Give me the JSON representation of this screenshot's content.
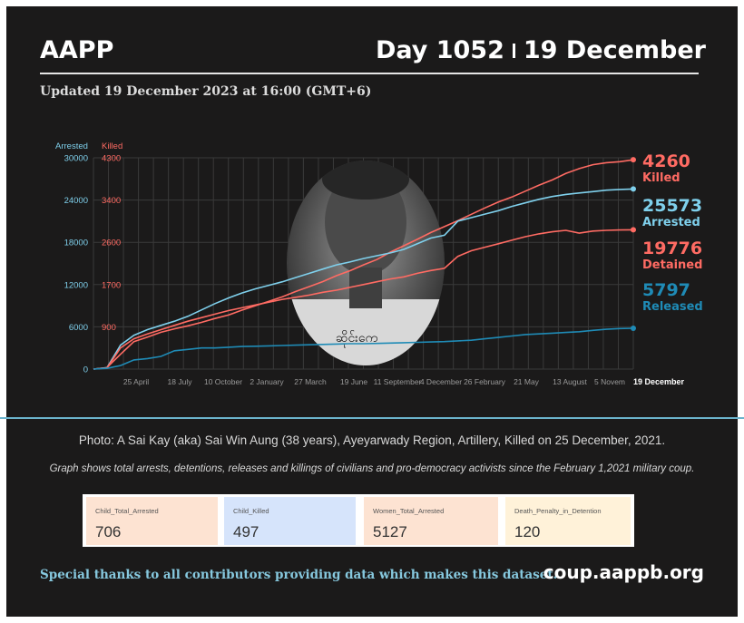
{
  "header": {
    "org": "AAPP",
    "day_label": "Day 1052",
    "date_label": "19 December",
    "updated": "Updated 19 December 2023 at 16:00 (GMT+6)"
  },
  "photo_caption": "Photo: A Sai Kay (aka) Sai Win Aung (38 years), Ayeyarwady Region, Artillery, Killed on 25 December, 2021.",
  "photo_overlay_text": "ဆိုင်းကေ",
  "graph_note": "Graph shows total arrests, detentions, releases and killings of civilians and pro-democracy activists since the February 1,2021 military coup.",
  "stats": [
    {
      "label": "Child_Total_Arrested",
      "value": "706",
      "color": "#fde3d2"
    },
    {
      "label": "Child_Killed",
      "value": "497",
      "color": "#d6e4fb"
    },
    {
      "label": "Women_Total_Arrested",
      "value": "5127",
      "color": "#fde3d2"
    },
    {
      "label": "Death_Penalty_in_Detention",
      "value": "120",
      "color": "#fff2d9"
    }
  ],
  "footer": {
    "thanks": "Special thanks to all contributors providing data which makes this dataset.",
    "site": "coup.aappb.org"
  },
  "chart_data": {
    "type": "line",
    "x_labels": [
      "25 April",
      "18 July",
      "10 October",
      "2 January",
      "27 March",
      "19 June",
      "11 September",
      "4 December",
      "26 February",
      "21 May",
      "13 August",
      "5 Novem",
      "19 December"
    ],
    "left_axis": {
      "title": "Arrested",
      "ticks": [
        "30000",
        "24000",
        "18000",
        "12000",
        "6000",
        "0"
      ],
      "range": [
        0,
        30000
      ],
      "color": "#7fd0ec"
    },
    "right_axis": {
      "title": "Killed",
      "ticks": [
        "4300",
        "3400",
        "2600",
        "1700",
        "900"
      ],
      "range": [
        0,
        4300
      ],
      "color": "#ff6b63"
    },
    "grid": true,
    "series": [
      {
        "name": "Killed",
        "axis": "right",
        "color": "#ff6b63",
        "final_label": "4260",
        "final_label_color": "#ff6b63",
        "points": [
          [
            0,
            0
          ],
          [
            1,
            30
          ],
          [
            2,
            300
          ],
          [
            3,
            560
          ],
          [
            4,
            650
          ],
          [
            5,
            750
          ],
          [
            6,
            820
          ],
          [
            7,
            880
          ],
          [
            8,
            950
          ],
          [
            9,
            1030
          ],
          [
            10,
            1100
          ],
          [
            11,
            1200
          ],
          [
            12,
            1290
          ],
          [
            13,
            1380
          ],
          [
            14,
            1470
          ],
          [
            15,
            1580
          ],
          [
            16,
            1680
          ],
          [
            17,
            1780
          ],
          [
            18,
            1900
          ],
          [
            19,
            2000
          ],
          [
            20,
            2120
          ],
          [
            21,
            2230
          ],
          [
            22,
            2380
          ],
          [
            23,
            2510
          ],
          [
            24,
            2640
          ],
          [
            25,
            2780
          ],
          [
            26,
            2900
          ],
          [
            27,
            3020
          ],
          [
            28,
            3150
          ],
          [
            29,
            3280
          ],
          [
            30,
            3400
          ],
          [
            31,
            3500
          ],
          [
            32,
            3620
          ],
          [
            33,
            3740
          ],
          [
            34,
            3850
          ],
          [
            35,
            3980
          ],
          [
            36,
            4080
          ],
          [
            37,
            4160
          ],
          [
            38,
            4200
          ],
          [
            39,
            4220
          ],
          [
            40,
            4260
          ]
        ]
      },
      {
        "name": "Arrested",
        "axis": "left",
        "color": "#7fd0ec",
        "final_label": "25573",
        "final_label_color": "#7fd0ec",
        "points": [
          [
            0,
            0
          ],
          [
            1,
            200
          ],
          [
            2,
            3400
          ],
          [
            3,
            4800
          ],
          [
            4,
            5600
          ],
          [
            5,
            6200
          ],
          [
            6,
            6800
          ],
          [
            7,
            7500
          ],
          [
            8,
            8400
          ],
          [
            9,
            9300
          ],
          [
            10,
            10100
          ],
          [
            11,
            10800
          ],
          [
            12,
            11400
          ],
          [
            13,
            11900
          ],
          [
            14,
            12400
          ],
          [
            15,
            13000
          ],
          [
            16,
            13600
          ],
          [
            17,
            14200
          ],
          [
            18,
            14800
          ],
          [
            19,
            15200
          ],
          [
            20,
            15700
          ],
          [
            21,
            16100
          ],
          [
            22,
            16500
          ],
          [
            23,
            17000
          ],
          [
            24,
            17800
          ],
          [
            25,
            18600
          ],
          [
            26,
            19000
          ],
          [
            27,
            21000
          ],
          [
            28,
            21500
          ],
          [
            29,
            22000
          ],
          [
            30,
            22500
          ],
          [
            31,
            23100
          ],
          [
            32,
            23600
          ],
          [
            33,
            24100
          ],
          [
            34,
            24500
          ],
          [
            35,
            24800
          ],
          [
            36,
            25000
          ],
          [
            37,
            25200
          ],
          [
            38,
            25400
          ],
          [
            39,
            25500
          ],
          [
            40,
            25573
          ]
        ]
      },
      {
        "name": "Detained",
        "axis": "left",
        "color": "#ff6b63",
        "final_label": "19776",
        "final_label_color": "#ff6b63",
        "points": [
          [
            0,
            0
          ],
          [
            1,
            150
          ],
          [
            2,
            3000
          ],
          [
            3,
            4300
          ],
          [
            4,
            5000
          ],
          [
            5,
            5600
          ],
          [
            6,
            6200
          ],
          [
            7,
            6800
          ],
          [
            8,
            7300
          ],
          [
            9,
            7800
          ],
          [
            10,
            8300
          ],
          [
            11,
            8700
          ],
          [
            12,
            9100
          ],
          [
            13,
            9500
          ],
          [
            14,
            9900
          ],
          [
            15,
            10200
          ],
          [
            16,
            10500
          ],
          [
            17,
            10900
          ],
          [
            18,
            11200
          ],
          [
            19,
            11600
          ],
          [
            20,
            12000
          ],
          [
            21,
            12400
          ],
          [
            22,
            12800
          ],
          [
            23,
            13100
          ],
          [
            24,
            13600
          ],
          [
            25,
            14000
          ],
          [
            26,
            14300
          ],
          [
            27,
            16000
          ],
          [
            28,
            16800
          ],
          [
            29,
            17300
          ],
          [
            30,
            17800
          ],
          [
            31,
            18300
          ],
          [
            32,
            18800
          ],
          [
            33,
            19200
          ],
          [
            34,
            19500
          ],
          [
            35,
            19700
          ],
          [
            36,
            19300
          ],
          [
            37,
            19600
          ],
          [
            38,
            19700
          ],
          [
            39,
            19750
          ],
          [
            40,
            19776
          ]
        ]
      },
      {
        "name": "Released",
        "axis": "left",
        "color": "#1f8bb6",
        "final_label": "5797",
        "final_label_color": "#1f8bb6",
        "points": [
          [
            0,
            0
          ],
          [
            1,
            100
          ],
          [
            2,
            500
          ],
          [
            3,
            1300
          ],
          [
            4,
            1500
          ],
          [
            5,
            1800
          ],
          [
            6,
            2600
          ],
          [
            7,
            2800
          ],
          [
            8,
            3000
          ],
          [
            9,
            3000
          ],
          [
            10,
            3100
          ],
          [
            11,
            3200
          ],
          [
            12,
            3250
          ],
          [
            13,
            3300
          ],
          [
            14,
            3350
          ],
          [
            15,
            3400
          ],
          [
            16,
            3450
          ],
          [
            17,
            3500
          ],
          [
            18,
            3550
          ],
          [
            19,
            3600
          ],
          [
            20,
            3600
          ],
          [
            21,
            3650
          ],
          [
            22,
            3700
          ],
          [
            23,
            3750
          ],
          [
            24,
            3800
          ],
          [
            25,
            3850
          ],
          [
            26,
            3900
          ],
          [
            27,
            4000
          ],
          [
            28,
            4100
          ],
          [
            29,
            4300
          ],
          [
            30,
            4500
          ],
          [
            31,
            4700
          ],
          [
            32,
            4900
          ],
          [
            33,
            5000
          ],
          [
            34,
            5100
          ],
          [
            35,
            5200
          ],
          [
            36,
            5300
          ],
          [
            37,
            5500
          ],
          [
            38,
            5650
          ],
          [
            39,
            5750
          ],
          [
            40,
            5797
          ]
        ]
      }
    ]
  }
}
